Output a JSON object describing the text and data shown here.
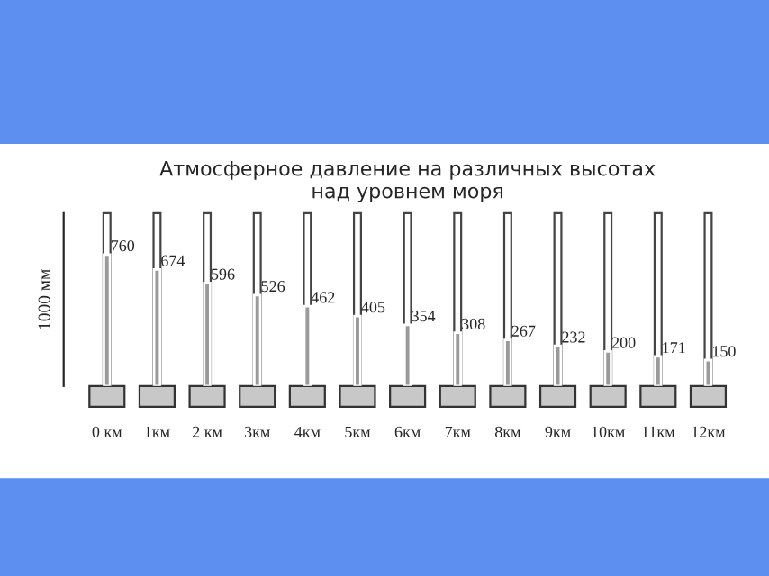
{
  "chart_data": {
    "type": "bar",
    "title": "Атмосферное давление на различных высотах\nнад уровнем моря",
    "categories": [
      "0 км",
      "1км",
      "2 км",
      "3км",
      "4км",
      "5км",
      "6км",
      "7км",
      "8км",
      "9км",
      "10км",
      "11км",
      "12км"
    ],
    "values": [
      760,
      674,
      596,
      526,
      462,
      405,
      354,
      308,
      267,
      232,
      200,
      171,
      150
    ],
    "color": "#9a9a9a",
    "ylabel": "1000 мм",
    "ylim": [
      0,
      1000
    ],
    "tick_labels": "x",
    "data_labels": true
  }
}
